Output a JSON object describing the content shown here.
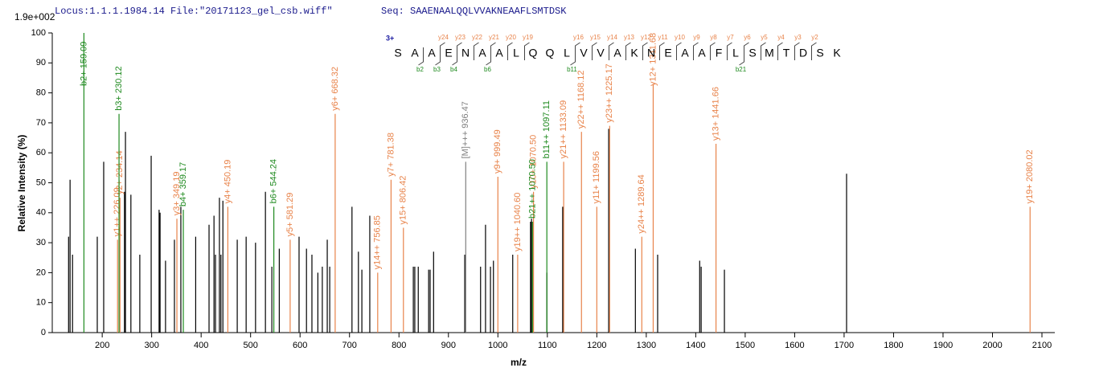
{
  "chart_data": {
    "type": "stem",
    "title": "Locus:1.1.1.1984.14 File:\"20171123_gel_csb.wiff\"",
    "subtitle": "Seq: SAAENAALQQLVVAKNEAAFLSMTDSK",
    "y_scale_label": "1.9e+002",
    "xlabel": "m/z",
    "ylabel": "Relative  Intensity (%)",
    "xlim": [
      99,
      2126
    ],
    "ylim": [
      0,
      100
    ],
    "xticks": [
      200,
      300,
      400,
      500,
      600,
      700,
      800,
      900,
      1000,
      1100,
      1200,
      1300,
      1400,
      1500,
      1600,
      1700,
      1800,
      1900,
      2000,
      2100
    ],
    "yticks": [
      0,
      10,
      20,
      30,
      40,
      50,
      60,
      70,
      80,
      90,
      100
    ],
    "series": [
      {
        "color": "#000000",
        "x": [
          132,
          135,
          140,
          190,
          203,
          245,
          247,
          258,
          276,
          299,
          315,
          317,
          328,
          346,
          359,
          389,
          416,
          426,
          429,
          437,
          440,
          444,
          473,
          491,
          510,
          530,
          543,
          558,
          598,
          613,
          624,
          636,
          645,
          655,
          660,
          705,
          718,
          725,
          741,
          829,
          832,
          839,
          860,
          863,
          870,
          933,
          965,
          975,
          985,
          991,
          1030,
          1066,
          1068,
          1099,
          1131,
          1224,
          1278,
          1323,
          1408,
          1411,
          1458,
          1705
        ],
        "values": [
          32,
          51,
          26,
          32,
          57,
          47,
          67,
          46,
          26,
          59,
          41,
          40,
          24,
          31,
          42,
          32,
          36,
          39,
          26,
          45,
          26,
          44,
          31,
          32,
          30,
          47,
          22,
          28,
          32,
          28,
          26,
          20,
          22,
          31,
          22,
          42,
          27,
          21,
          39,
          22,
          22,
          22,
          21,
          21,
          27,
          26,
          22,
          36,
          22,
          24,
          26,
          37,
          38,
          20,
          42,
          68,
          28,
          26,
          24,
          22,
          21,
          53
        ]
      },
      {
        "color": "#e8834a",
        "x": [
          231,
          236,
          351,
          454,
          580,
          671,
          757,
          784,
          809,
          1000,
          1040,
          1072,
          1133,
          1169,
          1200,
          1226,
          1291,
          1314,
          1441,
          2076
        ],
        "values": [
          31,
          45,
          38,
          42,
          31,
          73,
          20,
          51,
          35,
          52,
          26,
          47,
          57,
          67,
          42,
          69,
          32,
          83,
          63,
          42
        ],
        "peak_labels": [
          "y1++ 226.09",
          "y2+ 234.14",
          "y3+ 349.19",
          "y4+ 450.19",
          "y5+ 581.29",
          "y6+ 668.32",
          "y14++ 756.85",
          "y7+ 781.38",
          "y15+ 806.42",
          "y9+ 999.49",
          "y19++ 1040.60",
          "y10+ 1070.50",
          "y21++ 1133.09",
          "y22++ 1168.12",
          "y11+ 1199.56",
          "y23++ 1225.17",
          "y24++ 1289.64",
          "y12+ 1311.68",
          "y13+ 1441.66",
          "y19+ 2080.02"
        ]
      },
      {
        "color": "#1f8a1f",
        "x": [
          163,
          234,
          364,
          547,
          1070,
          1099
        ],
        "values": [
          100,
          73,
          41,
          42,
          37,
          57
        ],
        "peak_labels": [
          "b2+ 159.09",
          "b3+ 230.12",
          "b4+ 359.17",
          "b6+ 544.24",
          "b21++ 1070.50",
          "b11++ 1097.11"
        ]
      },
      {
        "color": "#808080",
        "x": [
          935
        ],
        "values": [
          57
        ],
        "peak_labels": [
          "[M]+++ 936.47"
        ]
      }
    ]
  },
  "sequence": {
    "charge": "3+",
    "residues": [
      "S",
      "A",
      "A",
      "E",
      "N",
      "A",
      "A",
      "L",
      "Q",
      "Q",
      "L",
      "V",
      "V",
      "A",
      "K",
      "N",
      "E",
      "A",
      "A",
      "F",
      "L",
      "S",
      "M",
      "T",
      "D",
      "S",
      "K"
    ],
    "y_ions": [
      null,
      null,
      "y24",
      "y23",
      "y22",
      "y21",
      "y20",
      "y19",
      null,
      null,
      "y16",
      "y15",
      "y14",
      "y13",
      "y12",
      "y11",
      "y10",
      "y9",
      "y8",
      "y7",
      "y6",
      "y5",
      "y4",
      "y3",
      "y2",
      null
    ],
    "b_ions": [
      null,
      "b2",
      "b3",
      "b4",
      null,
      "b6",
      null,
      null,
      null,
      null,
      "b11",
      null,
      null,
      null,
      null,
      null,
      null,
      null,
      null,
      null,
      "b21",
      null,
      null,
      null,
      null,
      null
    ]
  }
}
